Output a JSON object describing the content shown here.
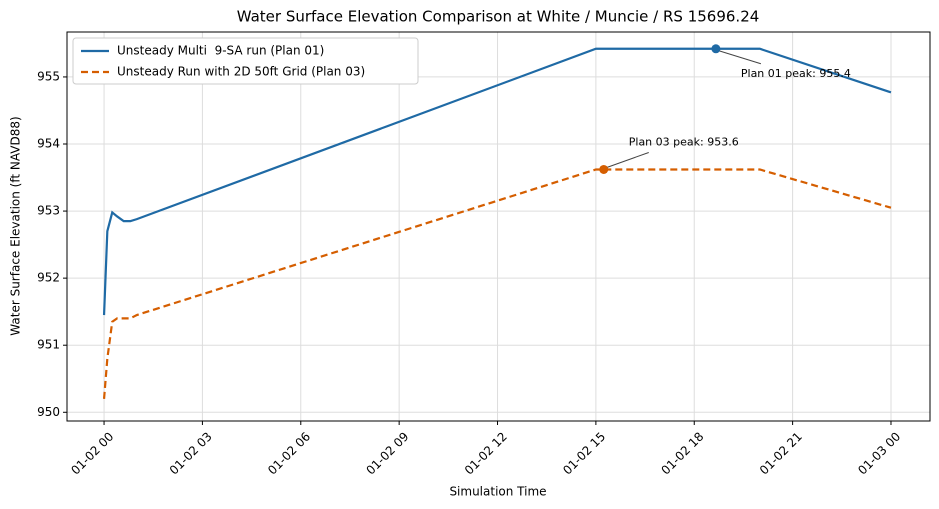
{
  "chart_data": {
    "type": "line",
    "title": "Water Surface Elevation Comparison at White / Muncie / RS 15696.24",
    "xlabel": "Simulation Time",
    "ylabel": "Water Surface Elevation (ft NAVD88)",
    "x": [
      0,
      0.1,
      0.25,
      0.4,
      0.6,
      0.8,
      1,
      15,
      20,
      24
    ],
    "series": [
      {
        "name": "Unsteady Multi  9-SA run (Plan 01)",
        "color": "#1f6aa5",
        "dash": false,
        "values": [
          951.45,
          952.7,
          952.98,
          952.92,
          952.85,
          952.85,
          952.88,
          955.42,
          955.42,
          954.77
        ]
      },
      {
        "name": "Unsteady Run with 2D 50ft Grid (Plan 03)",
        "color": "#d55e00",
        "dash": true,
        "values": [
          950.2,
          950.8,
          951.35,
          951.4,
          951.4,
          951.4,
          951.45,
          953.62,
          953.62,
          953.05
        ]
      }
    ],
    "annotations": [
      {
        "text": "Plan 01 peak: 955.4",
        "x": 18.66,
        "y": 955.42,
        "series": 0
      },
      {
        "text": "Plan 03 peak: 953.6",
        "x": 15.24,
        "y": 953.62,
        "series": 1
      }
    ],
    "xlim": [
      -1.13,
      25.19
    ],
    "ylim": [
      949.87,
      955.67
    ],
    "xticks": [
      {
        "value": 0,
        "label": "01-02 00"
      },
      {
        "value": 3,
        "label": "01-02 03"
      },
      {
        "value": 6,
        "label": "01-02 06"
      },
      {
        "value": 9,
        "label": "01-02 09"
      },
      {
        "value": 12,
        "label": "01-02 12"
      },
      {
        "value": 15,
        "label": "01-02 15"
      },
      {
        "value": 18,
        "label": "01-02 18"
      },
      {
        "value": 21,
        "label": "01-02 21"
      },
      {
        "value": 24,
        "label": "01-03 00"
      }
    ],
    "yticks": [
      950,
      951,
      952,
      953,
      954,
      955
    ],
    "grid": true,
    "legend": "upper-left"
  }
}
